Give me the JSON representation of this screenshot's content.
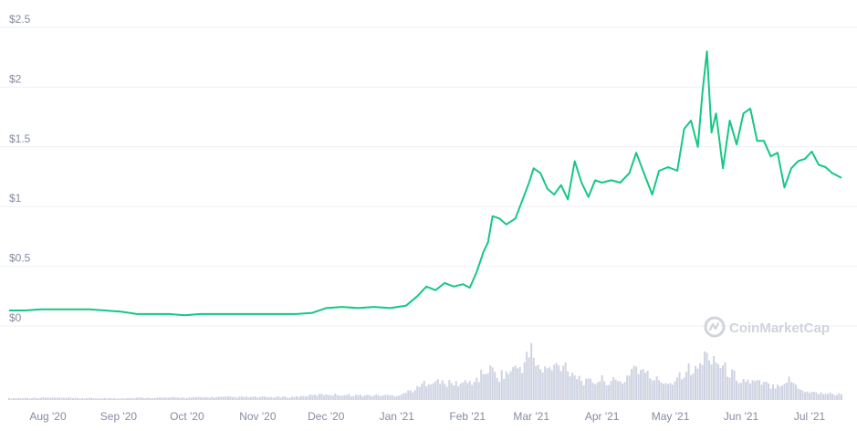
{
  "chart_data": {
    "type": "line",
    "title": "",
    "xlabel": "",
    "ylabel": "",
    "ylim": [
      0,
      2.5
    ],
    "y_ticks": [
      {
        "value": 2.5,
        "label": "$2.5"
      },
      {
        "value": 2,
        "label": "$2"
      },
      {
        "value": 1.5,
        "label": "$1.5"
      },
      {
        "value": 1,
        "label": "$1"
      },
      {
        "value": 0.5,
        "label": "$0.5"
      },
      {
        "value": 0,
        "label": "$0"
      }
    ],
    "x_ticks": [
      {
        "date": "2020-08-01",
        "label": "Aug '20"
      },
      {
        "date": "2020-09-01",
        "label": "Sep '20"
      },
      {
        "date": "2020-10-01",
        "label": "Oct '20"
      },
      {
        "date": "2020-11-01",
        "label": "Nov '20"
      },
      {
        "date": "2020-12-01",
        "label": "Dec '20"
      },
      {
        "date": "2021-01-01",
        "label": "Jan '21"
      },
      {
        "date": "2021-02-01",
        "label": "Feb '21"
      },
      {
        "date": "2021-03-01",
        "label": "Mar '21"
      },
      {
        "date": "2021-04-01",
        "label": "Apr '21"
      },
      {
        "date": "2021-05-01",
        "label": "May '21"
      },
      {
        "date": "2021-06-01",
        "label": "Jun '21"
      },
      {
        "date": "2021-07-01",
        "label": "Jul '21"
      }
    ],
    "x_range": [
      "2020-07-15",
      "2021-07-15"
    ],
    "grid": true,
    "colors": {
      "price_line": "#16c784",
      "volume_bars": "#cfd3e2",
      "grid": "#eef0f4",
      "tick_text": "#858ca2"
    },
    "series": [
      {
        "kind": "price",
        "points": [
          [
            "2020-07-15",
            0.13
          ],
          [
            "2020-07-22",
            0.13
          ],
          [
            "2020-07-29",
            0.14
          ],
          [
            "2020-08-05",
            0.14
          ],
          [
            "2020-08-12",
            0.14
          ],
          [
            "2020-08-19",
            0.14
          ],
          [
            "2020-08-26",
            0.13
          ],
          [
            "2020-09-02",
            0.12
          ],
          [
            "2020-09-09",
            0.1
          ],
          [
            "2020-09-16",
            0.1
          ],
          [
            "2020-09-23",
            0.1
          ],
          [
            "2020-09-30",
            0.09
          ],
          [
            "2020-10-07",
            0.1
          ],
          [
            "2020-10-14",
            0.1
          ],
          [
            "2020-10-21",
            0.1
          ],
          [
            "2020-10-28",
            0.1
          ],
          [
            "2020-11-04",
            0.1
          ],
          [
            "2020-11-11",
            0.1
          ],
          [
            "2020-11-18",
            0.1
          ],
          [
            "2020-11-25",
            0.11
          ],
          [
            "2020-12-01",
            0.15
          ],
          [
            "2020-12-08",
            0.16
          ],
          [
            "2020-12-15",
            0.15
          ],
          [
            "2020-12-22",
            0.16
          ],
          [
            "2020-12-29",
            0.15
          ],
          [
            "2021-01-05",
            0.17
          ],
          [
            "2021-01-10",
            0.25
          ],
          [
            "2021-01-14",
            0.33
          ],
          [
            "2021-01-18",
            0.3
          ],
          [
            "2021-01-22",
            0.36
          ],
          [
            "2021-01-26",
            0.33
          ],
          [
            "2021-01-30",
            0.35
          ],
          [
            "2021-02-02",
            0.32
          ],
          [
            "2021-02-05",
            0.45
          ],
          [
            "2021-02-08",
            0.62
          ],
          [
            "2021-02-10",
            0.7
          ],
          [
            "2021-02-12",
            0.92
          ],
          [
            "2021-02-15",
            0.9
          ],
          [
            "2021-02-18",
            0.85
          ],
          [
            "2021-02-22",
            0.9
          ],
          [
            "2021-02-25",
            1.05
          ],
          [
            "2021-02-28",
            1.2
          ],
          [
            "2021-03-02",
            1.32
          ],
          [
            "2021-03-05",
            1.28
          ],
          [
            "2021-03-08",
            1.15
          ],
          [
            "2021-03-11",
            1.1
          ],
          [
            "2021-03-14",
            1.18
          ],
          [
            "2021-03-17",
            1.06
          ],
          [
            "2021-03-20",
            1.38
          ],
          [
            "2021-03-23",
            1.2
          ],
          [
            "2021-03-26",
            1.08
          ],
          [
            "2021-03-29",
            1.22
          ],
          [
            "2021-04-01",
            1.2
          ],
          [
            "2021-04-05",
            1.22
          ],
          [
            "2021-04-09",
            1.2
          ],
          [
            "2021-04-13",
            1.28
          ],
          [
            "2021-04-16",
            1.45
          ],
          [
            "2021-04-19",
            1.3
          ],
          [
            "2021-04-23",
            1.1
          ],
          [
            "2021-04-26",
            1.3
          ],
          [
            "2021-04-30",
            1.33
          ],
          [
            "2021-05-04",
            1.3
          ],
          [
            "2021-05-07",
            1.65
          ],
          [
            "2021-05-10",
            1.72
          ],
          [
            "2021-05-13",
            1.5
          ],
          [
            "2021-05-15",
            1.95
          ],
          [
            "2021-05-17",
            2.3
          ],
          [
            "2021-05-19",
            1.62
          ],
          [
            "2021-05-21",
            1.78
          ],
          [
            "2021-05-24",
            1.32
          ],
          [
            "2021-05-27",
            1.72
          ],
          [
            "2021-05-30",
            1.52
          ],
          [
            "2021-06-02",
            1.78
          ],
          [
            "2021-06-05",
            1.82
          ],
          [
            "2021-06-08",
            1.55
          ],
          [
            "2021-06-11",
            1.55
          ],
          [
            "2021-06-14",
            1.42
          ],
          [
            "2021-06-17",
            1.45
          ],
          [
            "2021-06-20",
            1.16
          ],
          [
            "2021-06-23",
            1.32
          ],
          [
            "2021-06-26",
            1.38
          ],
          [
            "2021-06-29",
            1.4
          ],
          [
            "2021-07-02",
            1.46
          ],
          [
            "2021-07-05",
            1.35
          ],
          [
            "2021-07-08",
            1.33
          ],
          [
            "2021-07-11",
            1.28
          ],
          [
            "2021-07-15",
            1.24
          ]
        ]
      },
      {
        "kind": "volume",
        "points": [
          [
            "2020-07-15",
            0.03
          ],
          [
            "2020-08-01",
            0.04
          ],
          [
            "2020-08-15",
            0.03
          ],
          [
            "2020-09-01",
            0.03
          ],
          [
            "2020-09-15",
            0.04
          ],
          [
            "2020-10-01",
            0.04
          ],
          [
            "2020-10-15",
            0.05
          ],
          [
            "2020-11-01",
            0.05
          ],
          [
            "2020-11-15",
            0.05
          ],
          [
            "2020-12-01",
            0.1
          ],
          [
            "2020-12-15",
            0.08
          ],
          [
            "2021-01-01",
            0.08
          ],
          [
            "2021-01-10",
            0.2
          ],
          [
            "2021-01-15",
            0.35
          ],
          [
            "2021-01-20",
            0.3
          ],
          [
            "2021-01-25",
            0.28
          ],
          [
            "2021-02-01",
            0.3
          ],
          [
            "2021-02-05",
            0.35
          ],
          [
            "2021-02-10",
            0.55
          ],
          [
            "2021-02-15",
            0.42
          ],
          [
            "2021-02-20",
            0.5
          ],
          [
            "2021-02-25",
            0.6
          ],
          [
            "2021-03-01",
            0.85
          ],
          [
            "2021-03-05",
            0.5
          ],
          [
            "2021-03-10",
            0.55
          ],
          [
            "2021-03-15",
            0.65
          ],
          [
            "2021-03-20",
            0.45
          ],
          [
            "2021-03-25",
            0.3
          ],
          [
            "2021-04-01",
            0.35
          ],
          [
            "2021-04-10",
            0.3
          ],
          [
            "2021-04-15",
            0.6
          ],
          [
            "2021-04-20",
            0.45
          ],
          [
            "2021-04-25",
            0.35
          ],
          [
            "2021-05-01",
            0.3
          ],
          [
            "2021-05-08",
            0.55
          ],
          [
            "2021-05-12",
            0.5
          ],
          [
            "2021-05-16",
            0.75
          ],
          [
            "2021-05-19",
            0.8
          ],
          [
            "2021-05-23",
            0.6
          ],
          [
            "2021-05-28",
            0.45
          ],
          [
            "2021-06-01",
            0.35
          ],
          [
            "2021-06-08",
            0.3
          ],
          [
            "2021-06-15",
            0.25
          ],
          [
            "2021-06-22",
            0.35
          ],
          [
            "2021-06-29",
            0.15
          ],
          [
            "2021-07-06",
            0.12
          ],
          [
            "2021-07-15",
            0.1
          ]
        ]
      }
    ]
  },
  "watermark": {
    "text": "CoinMarketCap",
    "icon": "coinmarketcap-logo-icon"
  }
}
